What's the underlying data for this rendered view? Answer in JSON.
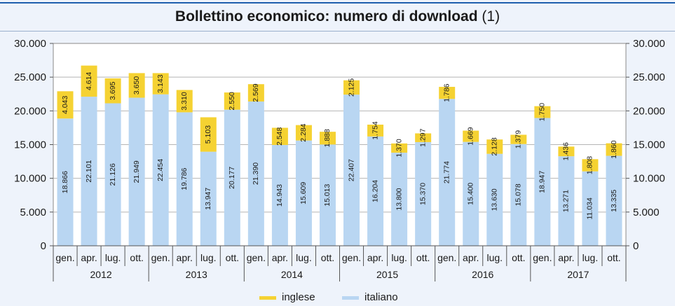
{
  "title": "Bollettino economico: numero di download",
  "title_suffix": "(1)",
  "chart_data": {
    "type": "bar",
    "stacked": true,
    "title": "Bollettino economico: numero di download (1)",
    "categories": [
      "gen.",
      "apr.",
      "lug.",
      "ott.",
      "gen.",
      "apr.",
      "lug.",
      "ott.",
      "gen.",
      "apr.",
      "lug.",
      "ott.",
      "gen.",
      "apr.",
      "lug.",
      "ott.",
      "gen.",
      "apr.",
      "lug.",
      "ott.",
      "gen.",
      "apr.",
      "lug.",
      "ott."
    ],
    "years": [
      "2012",
      "2013",
      "2014",
      "2015",
      "2016",
      "2017"
    ],
    "series": [
      {
        "name": "italiano",
        "color": "#b9d6f2",
        "values": [
          18866,
          22101,
          21126,
          21949,
          22454,
          19786,
          13947,
          20177,
          21390,
          14943,
          15609,
          15013,
          22407,
          16204,
          13800,
          15370,
          21774,
          15400,
          13630,
          15078,
          18947,
          13271,
          11034,
          13335
        ],
        "labels": [
          "18.866",
          "22.101",
          "21.126",
          "21.949",
          "22.454",
          "19.786",
          "13.947",
          "20.177",
          "21.390",
          "14.943",
          "15.609",
          "15.013",
          "22.407",
          "16.204",
          "13.800",
          "15.370",
          "21.774",
          "15.400",
          "13.630",
          "15.078",
          "18.947",
          "13.271",
          "11.034",
          "13.335"
        ]
      },
      {
        "name": "inglese",
        "color": "#f5d232",
        "values": [
          4043,
          4614,
          3695,
          3650,
          3143,
          3310,
          5103,
          2550,
          2569,
          2548,
          2284,
          1888,
          2125,
          1754,
          1370,
          1297,
          1786,
          1669,
          2128,
          1379,
          1750,
          1436,
          1808,
          1860
        ],
        "labels": [
          "4.043",
          "4.614",
          "3.695",
          "3.650",
          "3.143",
          "3.310",
          "5.103",
          "2.550",
          "2.569",
          "2.548",
          "2.284",
          "1.888",
          "2.125",
          "1.754",
          "1.370",
          "1.297",
          "1.786",
          "1.669",
          "2.128",
          "1.379",
          "1.750",
          "1.436",
          "1.808",
          "1.860"
        ]
      }
    ],
    "ylim": [
      0,
      30000
    ],
    "yticks": [
      0,
      5000,
      10000,
      15000,
      20000,
      25000,
      30000
    ],
    "ytick_labels": [
      "0",
      "5.000",
      "10.000",
      "15.000",
      "20.000",
      "25.000",
      "30.000"
    ],
    "legend": [
      "inglese",
      "italiano"
    ],
    "legend_position": "bottom",
    "grid": true
  }
}
